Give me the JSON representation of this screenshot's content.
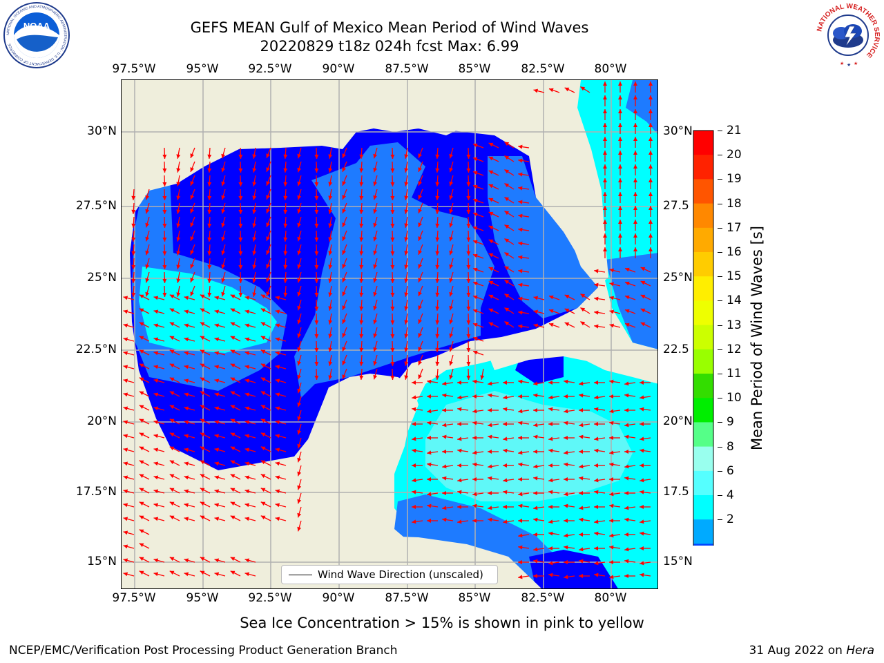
{
  "title_line1": "GEFS MEAN Gulf of Mexico Mean Period of Wind Waves",
  "title_line2": "20220829 t18z 024h fcst   Max: 6.99",
  "lon_ticks": [
    "97.5°W",
    "95°W",
    "92.5°W",
    "90°W",
    "87.5°W",
    "85°W",
    "82.5°W",
    "80°W"
  ],
  "lat_ticks_left": [
    "30°N",
    "27.5°N",
    "25°N",
    "22.5°N",
    "20°N",
    "17.5°N",
    "15°N"
  ],
  "lat_ticks_right": [
    "30°N",
    "27.5",
    "25°N",
    "22.5",
    "20°N",
    "17.5",
    "15°N"
  ],
  "colorbar": {
    "title": "Mean Period of Wind Waves [s]",
    "labels": [
      "21",
      "20",
      "19",
      "18",
      "17",
      "16",
      "15",
      "14",
      "13",
      "12",
      "11",
      "10",
      "9",
      "8",
      "6",
      "4",
      "2"
    ],
    "colors": [
      "#ff0000",
      "#ff2200",
      "#ff5500",
      "#ff8800",
      "#ffaa00",
      "#ffcc00",
      "#ffee00",
      "#eeff00",
      "#ccff00",
      "#99ff00",
      "#33dd00",
      "#00ee00",
      "#55ff88",
      "#99ffee",
      "#55ffff",
      "#00ffff",
      "#00aaff",
      "#0044ff"
    ]
  },
  "map": {
    "colors": {
      "land": "#efeedc",
      "period_2_4": "#0000ff",
      "period_4_6": "#1e7bff",
      "period_6_8": "#00ffff",
      "period_8_9": "#5ff8f8",
      "arrow": "#ff0000",
      "grid": "#b0b0b0"
    }
  },
  "legend": {
    "wind_wave_direction_label": "Wind Wave Direction (unscaled)"
  },
  "note": "Sea Ice Concentration > 15% is shown in pink to yellow",
  "footer": {
    "left": "NCEP/EMC/Verification Post Processing Product Generation Branch",
    "date": "31 Aug 2022 on",
    "machine": "Hera"
  },
  "logos": {
    "noaa_text": "NOAA",
    "noaa_ring": "NATIONAL OCEANIC AND ATMOSPHERIC ADMINISTRATION · U.S. DEPARTMENT OF COMMERCE",
    "nws_ring": "NATIONAL WEATHER SERVICE"
  }
}
